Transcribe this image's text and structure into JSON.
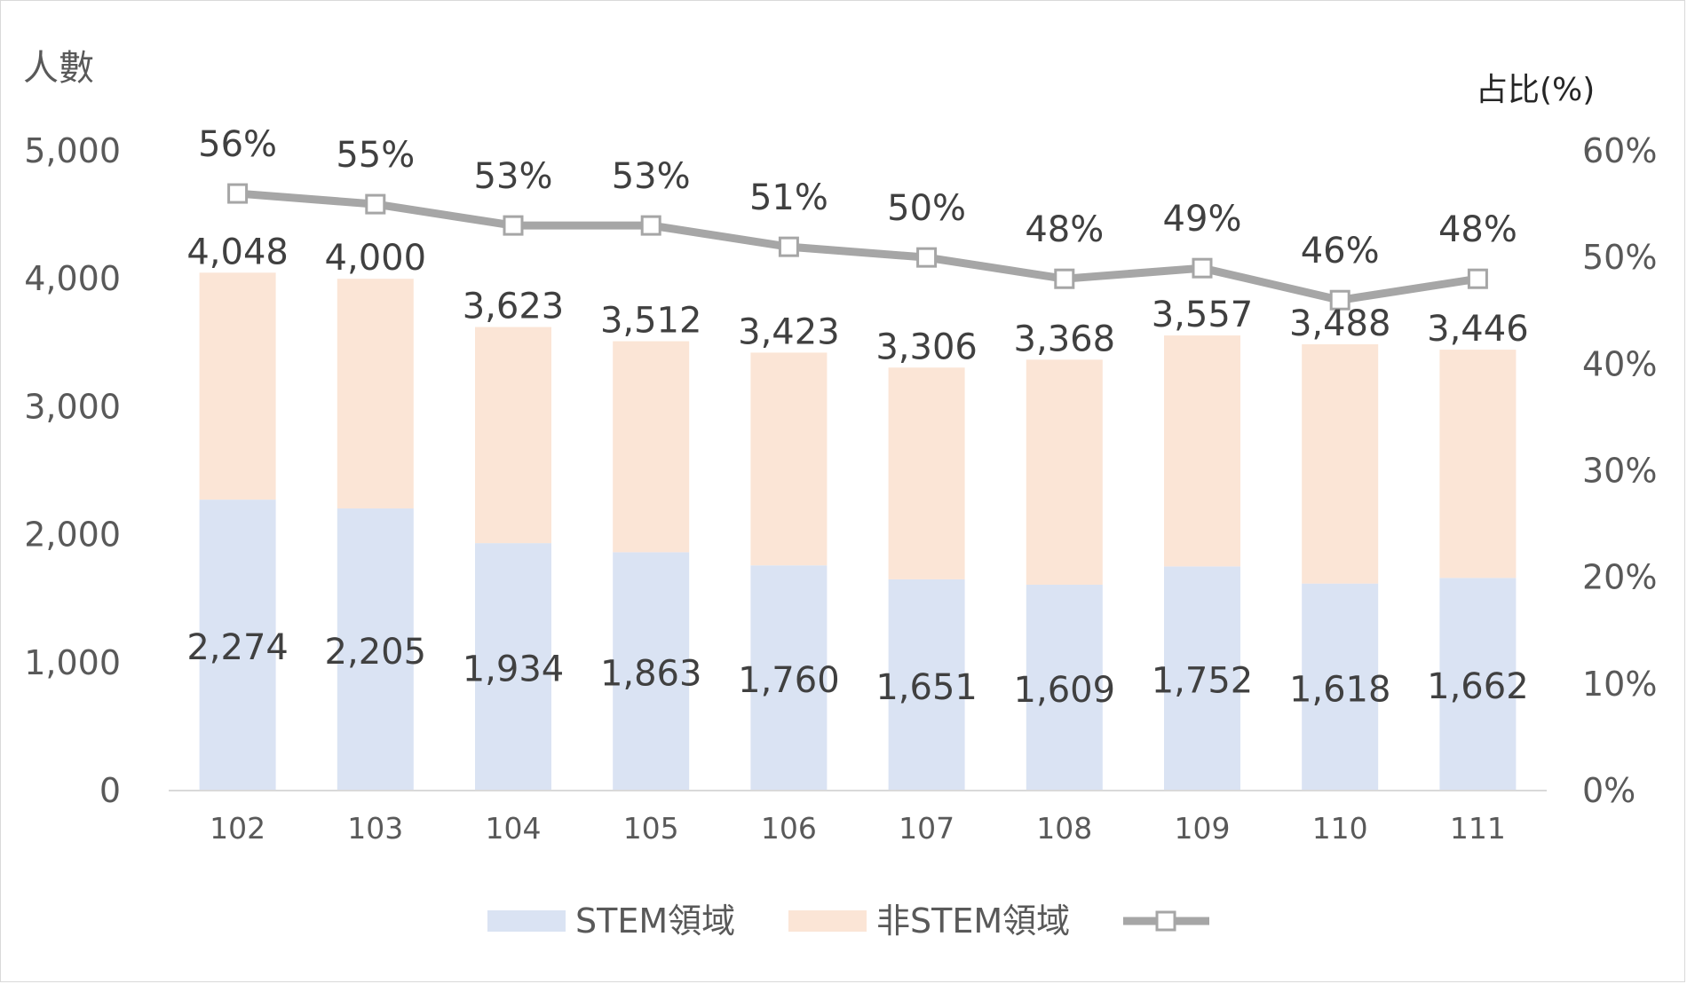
{
  "chart_data": {
    "type": "bar",
    "stacked": true,
    "categories": [
      "102",
      "103",
      "104",
      "105",
      "106",
      "107",
      "108",
      "109",
      "110",
      "111"
    ],
    "series": [
      {
        "name": "STEM領域",
        "type": "bar",
        "axis": "left",
        "color": "#dae3f3",
        "values": [
          2274,
          2205,
          1934,
          1863,
          1760,
          1651,
          1609,
          1752,
          1618,
          1662
        ],
        "labels": [
          "2,274",
          "2,205",
          "1,934",
          "1,863",
          "1,760",
          "1,651",
          "1,609",
          "1,752",
          "1,618",
          "1,662"
        ]
      },
      {
        "name": "非STEM領域",
        "type": "bar",
        "axis": "left",
        "color": "#fbe5d6",
        "values": [
          1774,
          1795,
          1689,
          1649,
          1663,
          1655,
          1759,
          1805,
          1870,
          1784
        ]
      },
      {
        "type": "line",
        "axis": "right",
        "color": "#a6a6a6",
        "marker": "square",
        "values": [
          56,
          55,
          53,
          53,
          51,
          50,
          48,
          49,
          46,
          48
        ],
        "labels": [
          "56%",
          "55%",
          "53%",
          "53%",
          "51%",
          "50%",
          "48%",
          "49%",
          "46%",
          "48%"
        ]
      }
    ],
    "totals": {
      "values": [
        4048,
        4000,
        3623,
        3512,
        3423,
        3306,
        3368,
        3557,
        3488,
        3446
      ],
      "labels": [
        "4,048",
        "4,000",
        "3,623",
        "3,512",
        "3,423",
        "3,306",
        "3,368",
        "3,557",
        "3,488",
        "3,446"
      ]
    },
    "y_left": {
      "title": "人數",
      "range": [
        0,
        5000
      ],
      "ticks": [
        0,
        1000,
        2000,
        3000,
        4000,
        5000
      ],
      "tick_labels": [
        "0",
        "1,000",
        "2,000",
        "3,000",
        "4,000",
        "5,000"
      ]
    },
    "y_right": {
      "title": "占比(%)",
      "range": [
        0,
        60
      ],
      "ticks": [
        0,
        10,
        20,
        30,
        40,
        50,
        60
      ],
      "tick_labels": [
        "0%",
        "10%",
        "20%",
        "30%",
        "40%",
        "50%",
        "60%"
      ]
    },
    "grid": false,
    "legend": "bottom"
  }
}
